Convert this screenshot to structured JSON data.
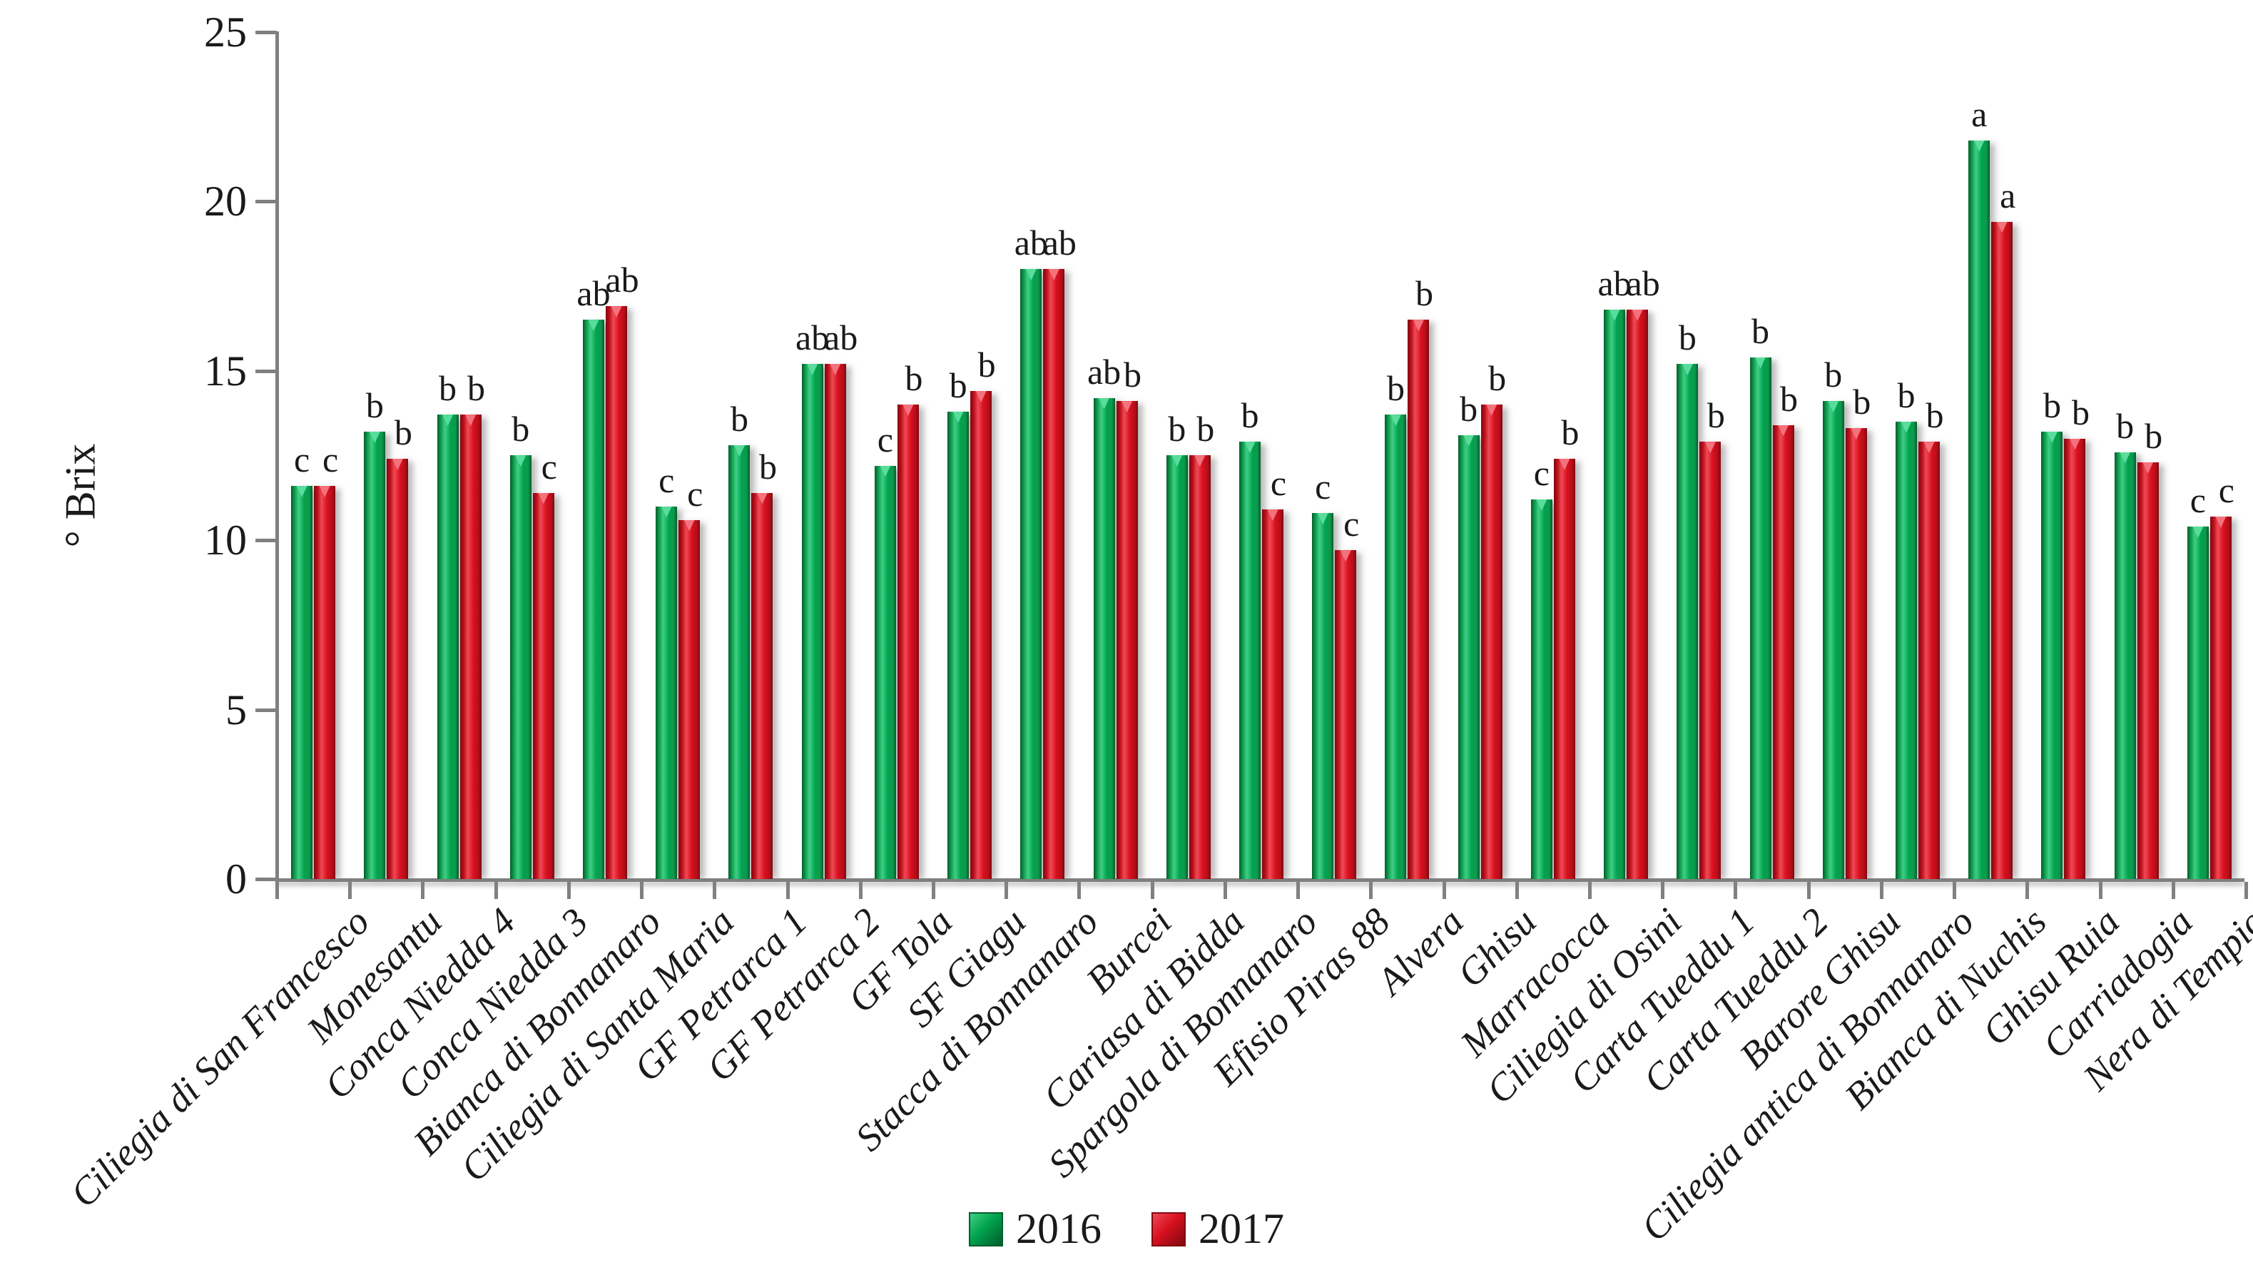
{
  "chart_data": {
    "type": "bar",
    "title": "",
    "xlabel": "",
    "ylabel": "° Brix",
    "ylim": [
      0,
      25
    ],
    "yticks": [
      0,
      5,
      10,
      15,
      20,
      25
    ],
    "grid": false,
    "legend_position": "bottom-center",
    "categories": [
      "Ciliegia di San Francesco",
      "Monesantu",
      "Conca Niedda 4",
      "Conca Niedda 3",
      "Bianca di Bonnanaro",
      "Ciliegia di Santa Maria",
      "GF Petrarca 1",
      "GF Petrarca 2",
      "GF Tola",
      "SF Giagu",
      "Stacca di Bonnanaro",
      "Burcei",
      "Cariasa di Bidda",
      "Spargola di Bonnanaro",
      "Efisio Piras 88",
      "Alvera",
      "Ghisu",
      "Marracocca",
      "Ciliegia di Osini",
      "Carta Tueddu 1",
      "Carta Tueddu 2",
      "Barore Ghisu",
      "Ciliegia antica di Bonnanaro",
      "Bianca di Nuchis",
      "Ghisu Ruia",
      "Carriadogia",
      "Nera di Tempio"
    ],
    "series": [
      {
        "name": "2016",
        "values": [
          11.6,
          13.2,
          13.7,
          12.5,
          16.5,
          11.0,
          12.8,
          15.2,
          12.2,
          13.8,
          18.0,
          14.2,
          12.5,
          12.9,
          10.8,
          13.7,
          13.1,
          11.2,
          16.8,
          15.2,
          15.4,
          14.1,
          13.5,
          21.8,
          13.2,
          12.6,
          10.4
        ],
        "letters": [
          "c",
          "b",
          "b",
          "b",
          "ab",
          "c",
          "b",
          "ab",
          "c",
          "b",
          "ab",
          "ab",
          "b",
          "b",
          "c",
          "b",
          "b",
          "c",
          "ab",
          "b",
          "b",
          "b",
          "b",
          "a",
          "b",
          "b",
          "c"
        ],
        "color_main": "#00A24F",
        "color_dark": "#055C2B",
        "color_mid": "#0E9A4C",
        "color_light": "#3FCF85",
        "color_cap": "#58DD9C"
      },
      {
        "name": "2017",
        "values": [
          11.6,
          12.4,
          13.7,
          11.4,
          16.9,
          10.6,
          11.4,
          15.2,
          14.0,
          14.4,
          18.0,
          14.1,
          12.5,
          10.9,
          9.7,
          16.5,
          14.0,
          12.4,
          16.8,
          12.9,
          13.4,
          13.3,
          12.9,
          19.4,
          13.0,
          12.3,
          10.7
        ],
        "letters": [
          "c",
          "b",
          "b",
          "c",
          "ab",
          "c",
          "b",
          "ab",
          "b",
          "b",
          "ab",
          "b",
          "b",
          "c",
          "c",
          "b",
          "b",
          "b",
          "ab",
          "b",
          "b",
          "b",
          "b",
          "a",
          "b",
          "b",
          "c"
        ],
        "color_main": "#D8101F",
        "color_dark": "#7E0A10",
        "color_mid": "#B90E1A",
        "color_light": "#F04A55",
        "color_cap": "#F4727C"
      }
    ]
  },
  "colors": {
    "axis": "#808080",
    "text": "#1A1A1A",
    "background": "#FFFFFF"
  }
}
